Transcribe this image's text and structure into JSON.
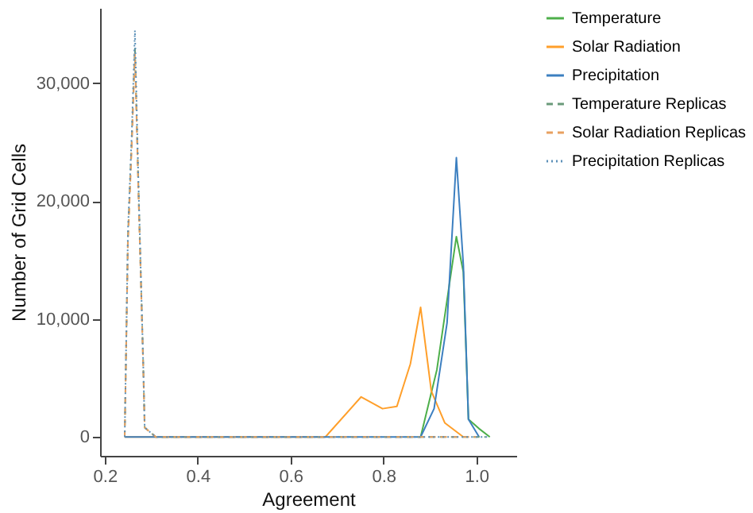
{
  "chart_data": {
    "type": "line",
    "xlabel": "Agreement",
    "ylabel": "Number of Grid Cells",
    "xlim": [
      0.19,
      1.086
    ],
    "ylim": [
      -1600,
      36400
    ],
    "xticks": [
      0.2,
      0.4,
      0.6,
      0.8,
      {
        "value": 1,
        "label": "1.0"
      }
    ],
    "yticks": [
      0,
      {
        "value": 10000,
        "label": "10,000"
      },
      {
        "value": 20000,
        "label": "20,000"
      },
      {
        "value": 30000,
        "label": "30,000"
      }
    ],
    "grid": false,
    "legend": "right",
    "series": [
      {
        "name": "Temperature",
        "color": "#4daf4a",
        "line_style": "solid",
        "x": [
          0.88,
          0.915,
          0.957,
          0.972,
          0.983,
          1.006,
          1.029
        ],
        "values": [
          0,
          5700,
          17000,
          14000,
          1500,
          700,
          0
        ]
      },
      {
        "name": "Solar Radiation",
        "color": "#ff9f2a",
        "line_style": "solid",
        "x": [
          0.243,
          0.675,
          0.752,
          0.798,
          0.829,
          0.858,
          0.88,
          0.903,
          0.932,
          0.972
        ],
        "values": [
          0,
          0,
          3400,
          2400,
          2600,
          6200,
          11000,
          3900,
          1200,
          0
        ]
      },
      {
        "name": "Precipitation",
        "color": "#3c7fc0",
        "line_style": "solid",
        "x": [
          0.243,
          0.88,
          0.909,
          0.937,
          0.957,
          0.972,
          0.983,
          1.006
        ],
        "values": [
          0,
          0,
          2400,
          9700,
          23700,
          14600,
          1500,
          0
        ]
      },
      {
        "name": "Temperature Replicas",
        "color": "#6a9a7a",
        "line_style": "dashed",
        "x": [
          0.243,
          0.25,
          0.258,
          0.265,
          0.272,
          0.283,
          0.286,
          0.31,
          1.02
        ],
        "values": [
          0,
          17000,
          25000,
          33000,
          22000,
          6000,
          800,
          0,
          0
        ]
      },
      {
        "name": "Solar Radiation Replicas",
        "color": "#e8a060",
        "line_style": "dashed",
        "x": [
          0.243,
          0.25,
          0.258,
          0.265,
          0.272,
          0.283,
          0.286,
          0.31,
          1.0
        ],
        "values": [
          0,
          16500,
          24500,
          32500,
          21500,
          5800,
          800,
          0,
          0
        ]
      },
      {
        "name": "Precipitation Replicas",
        "color": "#5a8fb8",
        "line_style": "dotted",
        "x": [
          0.243,
          0.25,
          0.258,
          0.265,
          0.272,
          0.283,
          0.286,
          0.31,
          1.03
        ],
        "values": [
          0,
          17500,
          25500,
          34500,
          22500,
          6000,
          800,
          0,
          0
        ]
      }
    ]
  }
}
